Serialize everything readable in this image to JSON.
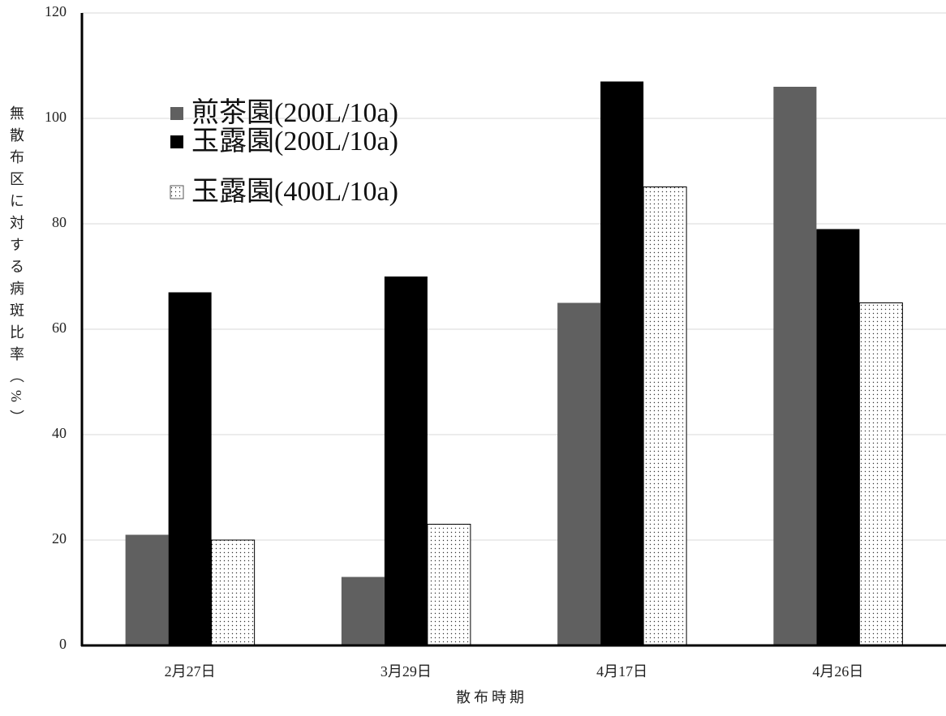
{
  "chart_data": {
    "type": "bar",
    "x_label": "散布時期",
    "y_label": "無散布区に対する病斑比率（%）",
    "categories": [
      "2月27日",
      "3月29日",
      "4月17日",
      "4月26日"
    ],
    "series": [
      {
        "name": "煎茶園(200L/10a)",
        "color": "#606060",
        "values": [
          21,
          13,
          65,
          106
        ]
      },
      {
        "name": "玉露園(200L/10a)",
        "color": "#000000",
        "values": [
          67,
          70,
          107,
          79
        ]
      },
      {
        "name": "玉露園(400L/10a)",
        "color": "#ffffff",
        "pattern": "dots",
        "values": [
          20,
          23,
          87,
          65
        ]
      }
    ],
    "ylim": [
      0,
      120
    ],
    "yticks": [
      0,
      20,
      40,
      60,
      80,
      100,
      120
    ],
    "grid": true,
    "legend": "upper-left"
  }
}
